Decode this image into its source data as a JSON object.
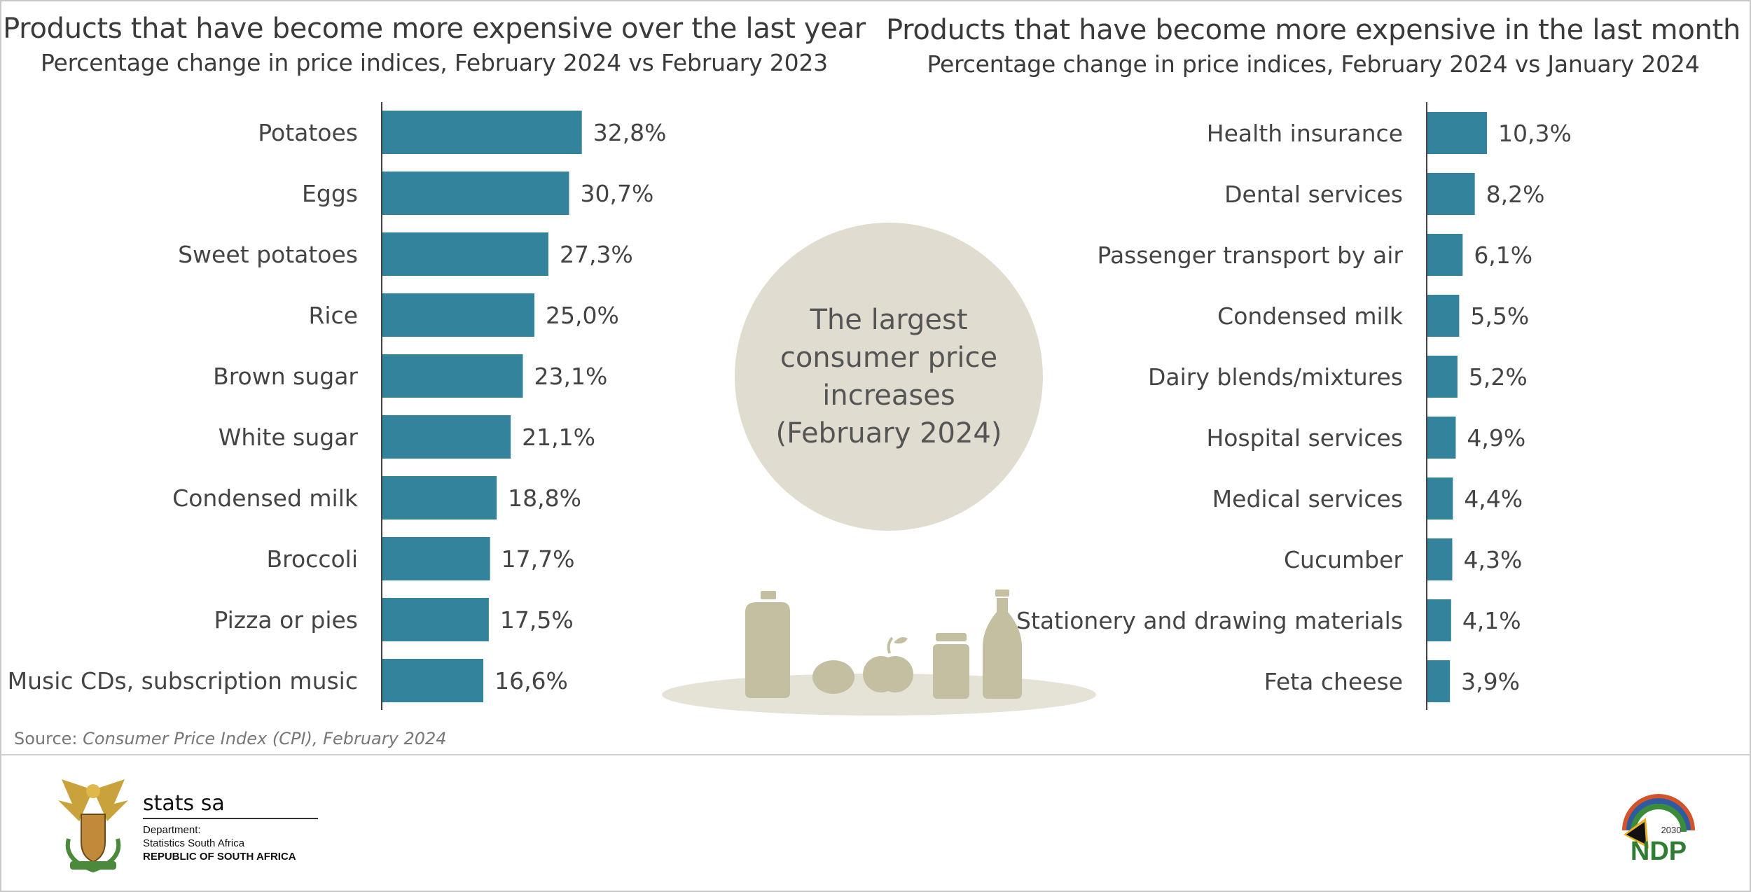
{
  "left_chart": {
    "title": "Products that have become more expensive over the last year",
    "subtitle": "Percentage change in price indices, February 2024 vs February 2023"
  },
  "right_chart": {
    "title": "Products that have become more expensive in the last month",
    "subtitle": "Percentage change in price indices, February 2024 vs January 2024"
  },
  "center": {
    "circle_text": "The largest\nconsumer price\nincreases\n(February 2024)"
  },
  "source": {
    "label": "Source: ",
    "text": "Consumer Price Index (CPI), February 2024"
  },
  "footer": {
    "brand": "stats sa",
    "dept_line1": "Department:",
    "dept_line2": "Statistics South Africa",
    "dept_line3": "REPUBLIC OF SOUTH AFRICA",
    "ndp_text": "NDP",
    "ndp_year": "2030"
  },
  "colors": {
    "bar": "#32839b",
    "circle": "#e0ddd0",
    "icons": "#c4bfa1",
    "plate": "#e5e2d6",
    "axis": "#444444"
  },
  "chart_data": [
    {
      "type": "bar",
      "orientation": "horizontal",
      "title": "Products that have become more expensive over the last year",
      "subtitle": "Percentage change in price indices, February 2024 vs February 2023",
      "categories": [
        "Potatoes",
        "Eggs",
        "Sweet potatoes",
        "Rice",
        "Brown sugar",
        "White sugar",
        "Condensed milk",
        "Broccoli",
        "Pizza or pies",
        "Music CDs, subscription music"
      ],
      "values": [
        32.8,
        30.7,
        27.3,
        25.0,
        23.1,
        21.1,
        18.8,
        17.7,
        17.5,
        16.6
      ],
      "labels": [
        "32,8%",
        "30,7%",
        "27,3%",
        "25,0%",
        "23,1%",
        "21,1%",
        "18,8%",
        "17,7%",
        "17,5%",
        "16,6%"
      ],
      "unit": "%"
    },
    {
      "type": "bar",
      "orientation": "horizontal",
      "title": "Products that have become more expensive in the last month",
      "subtitle": "Percentage change in price indices, February 2024 vs January 2024",
      "categories": [
        "Health insurance",
        "Dental services",
        "Passenger transport by air",
        "Condensed milk",
        "Dairy blends/mixtures",
        "Hospital services",
        "Medical services",
        "Cucumber",
        "Stationery and drawing materials",
        "Feta cheese"
      ],
      "values": [
        10.3,
        8.2,
        6.1,
        5.5,
        5.2,
        4.9,
        4.4,
        4.3,
        4.1,
        3.9
      ],
      "labels": [
        "10,3%",
        "8,2%",
        "6,1%",
        "5,5%",
        "5,2%",
        "4,9%",
        "4,4%",
        "4,3%",
        "4,1%",
        "3,9%"
      ],
      "unit": "%"
    }
  ]
}
